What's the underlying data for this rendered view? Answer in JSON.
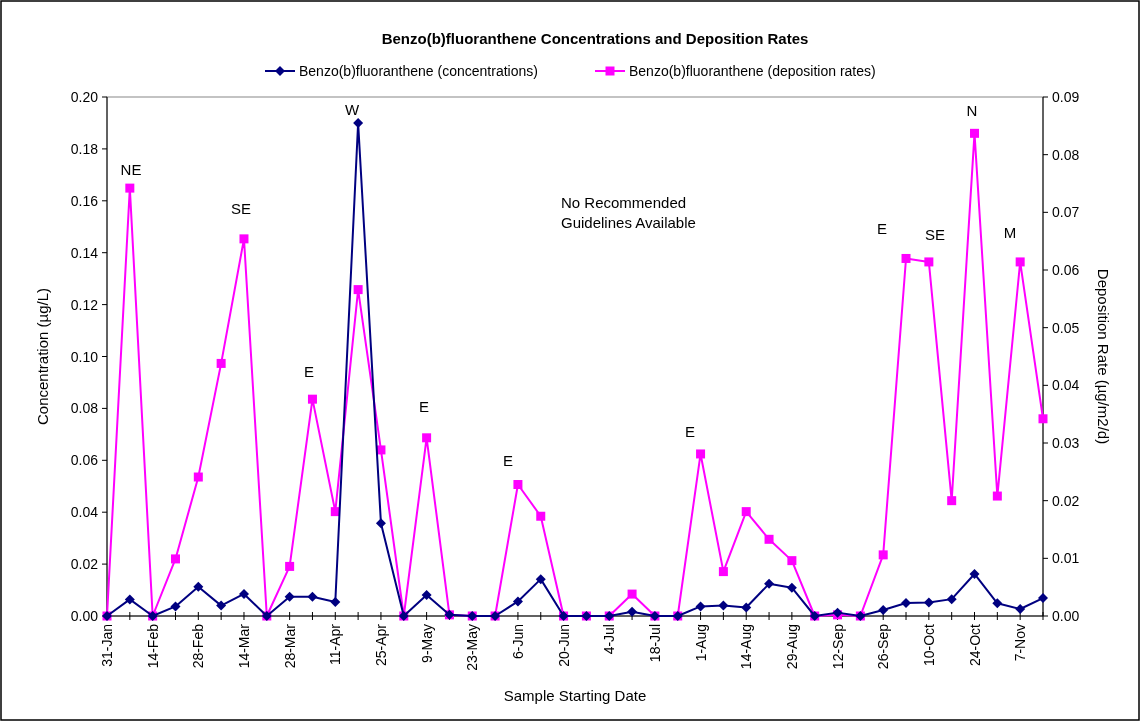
{
  "chart_data": {
    "type": "line",
    "title": "Benzo(b)fluoranthene Concentrations and Deposition Rates",
    "xlabel": "Sample Starting Date",
    "ylabel": "Concentration (µg/L)",
    "y2label": "Deposition Rate (µg/m2/d)",
    "categories": [
      "31-Jan",
      null,
      "14-Feb",
      null,
      "28-Feb",
      null,
      "14-Mar",
      null,
      "28-Mar",
      null,
      "11-Apr",
      null,
      "25-Apr",
      null,
      "9-May",
      null,
      "23-May",
      null,
      "6-Jun",
      null,
      "20-Jun",
      null,
      "4-Jul",
      null,
      "18-Jul",
      null,
      "1-Aug",
      null,
      "14-Aug",
      null,
      "29-Aug",
      null,
      "12-Sep",
      null,
      "26-Sep",
      null,
      "10-Oct",
      null,
      "24-Oct",
      null,
      "7-Nov",
      null
    ],
    "ylim": [
      0,
      0.2
    ],
    "yticks": [
      {
        "value": 0,
        "label": "0.00"
      },
      {
        "value": 0.02,
        "label": "0.02"
      },
      {
        "value": 0.04,
        "label": "0.04"
      },
      {
        "value": 0.06,
        "label": "0.06"
      },
      {
        "value": 0.08,
        "label": "0.08"
      },
      {
        "value": 0.1,
        "label": "0.10"
      },
      {
        "value": 0.12,
        "label": "0.12"
      },
      {
        "value": 0.14,
        "label": "0.14"
      },
      {
        "value": 0.16,
        "label": "0.16"
      },
      {
        "value": 0.18,
        "label": "0.18"
      },
      {
        "value": 0.2,
        "label": "0.20"
      }
    ],
    "y2lim": [
      0,
      0.09
    ],
    "y2ticks": [
      {
        "value": 0,
        "label": "0.00"
      },
      0.01,
      0.02,
      0.03,
      0.04,
      0.05,
      0.06,
      0.07,
      0.08,
      0.09
    ],
    "grid": false,
    "legend": "top",
    "line_style": "solid",
    "series": [
      {
        "name": "Benzo(b)fluoranthene (concentrations)",
        "color": "#000080",
        "marker": "diamond",
        "values": [
          0,
          0.0064,
          0,
          0.0037,
          0.0113,
          0.004,
          0.0085,
          0,
          0.0074,
          0.0074,
          0.0054,
          0.19,
          0.0357,
          0,
          0.0081,
          0.0005,
          0,
          0,
          0.0056,
          0.0142,
          0,
          0,
          0,
          0.0016,
          0,
          0,
          0.0037,
          0.004,
          0.0033,
          0.0124,
          0.0109,
          0,
          0.0013,
          0,
          0.0023,
          0.005,
          0.0052,
          0.0065,
          0.0162,
          0.0049,
          0.0027,
          0.0069
        ]
      },
      {
        "name": "Benzo(b)fluoranthene (deposition rates)",
        "color": "#ff00ff",
        "marker": "square",
        "axis": "y2",
        "values": [
          0,
          0.0742,
          0,
          0.0099,
          0.0241,
          0.0438,
          0.0654,
          0,
          0.0086,
          0.0376,
          0.0181,
          0.0566,
          0.0288,
          0,
          0.0309,
          0.0002,
          0,
          0,
          0.0228,
          0.0173,
          0,
          0,
          0,
          0.0038,
          0,
          0,
          0.0281,
          0.0077,
          0.0181,
          0.0133,
          0.0096,
          0,
          0.0002,
          0,
          0.0106,
          0.062,
          0.0614,
          0.02,
          0.0837,
          0.0208,
          0.0614,
          0.0342
        ]
      }
    ],
    "annotations": [
      "NE",
      "SE",
      "E",
      "W",
      "E",
      "E",
      "E",
      "E",
      "SE",
      "N",
      "M",
      "No Recommended\nGuidelines Available"
    ]
  }
}
